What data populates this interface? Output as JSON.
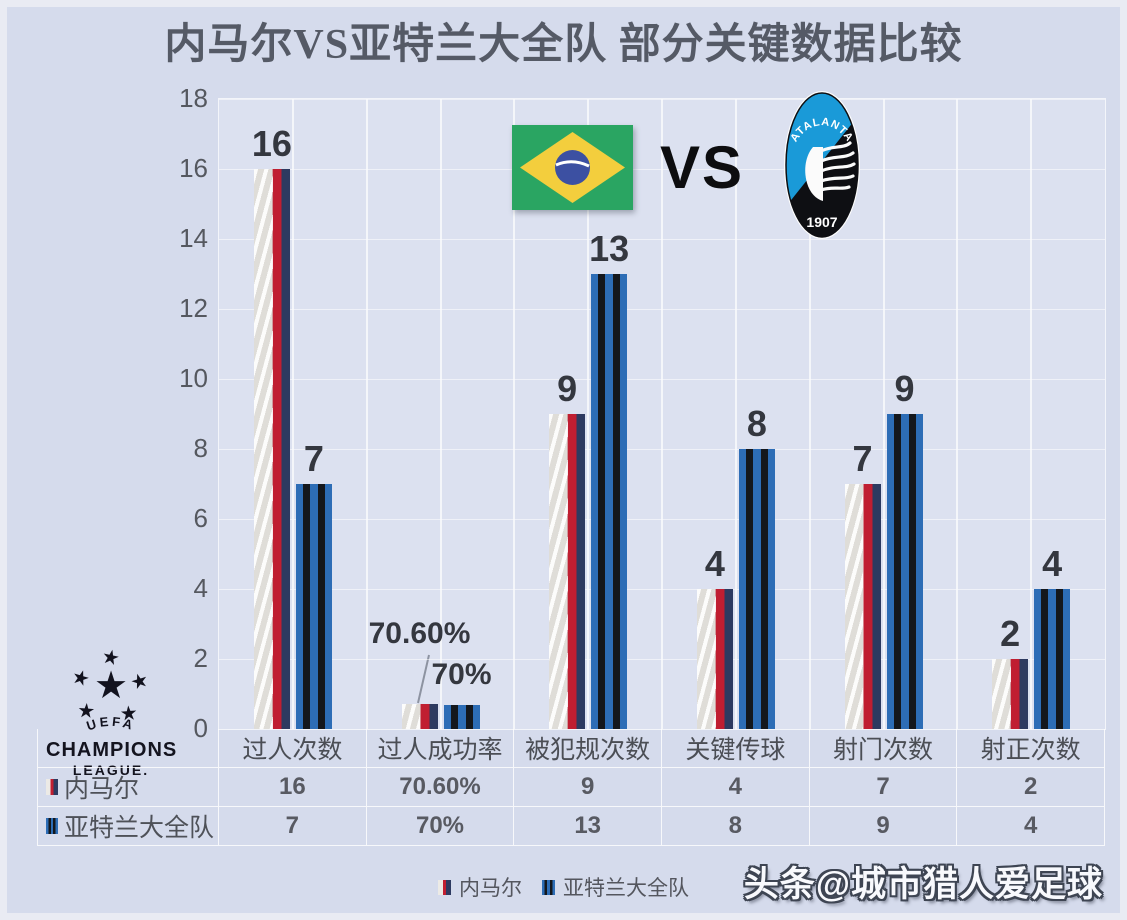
{
  "title": "内马尔VS亚特兰大全队 部分关键数据比较",
  "vs_label": "VS",
  "watermark": "头条@城市猎人爱足球",
  "colors": {
    "background": "#d5dbec",
    "plot_background": "#dce1f0",
    "neymar_white": "#eceae6",
    "neymar_red": "#c01e31",
    "neymar_navy": "#2d3a60",
    "atalanta_blue": "#2d6db6",
    "atalanta_black": "#14171c",
    "label_text": "#34373f",
    "axis_text": "#55585f",
    "crest_blue": "#1a9ad8",
    "flag_green": "#2aa562",
    "flag_yellow": "#f3ce3d",
    "flag_blue": "#3c50a2"
  },
  "logos": {
    "uefa": {
      "arc": "UEFA",
      "line1": "CHAMPIONS",
      "line2": "LEAGUE."
    },
    "atalanta": {
      "name": "ATALANTA",
      "year": "1907"
    }
  },
  "chart_data": {
    "type": "bar",
    "categories": [
      "过人次数",
      "过人成功率",
      "被犯规次数",
      "关键传球",
      "射门次数",
      "射正次数"
    ],
    "series": [
      {
        "name": "内马尔",
        "values": [
          16,
          0.706,
          9,
          4,
          7,
          2
        ],
        "labels": [
          "16",
          "70.60%",
          "9",
          "4",
          "7",
          "2"
        ]
      },
      {
        "name": "亚特兰大全队",
        "values": [
          7,
          0.7,
          13,
          8,
          9,
          4
        ],
        "labels": [
          "7",
          "70%",
          "13",
          "8",
          "9",
          "4"
        ]
      }
    ],
    "ylabel": "",
    "xlabel": "",
    "ylim": [
      0,
      18
    ],
    "yticks": [
      0,
      2,
      4,
      6,
      8,
      10,
      12,
      14,
      16,
      18
    ],
    "grid": true,
    "legend_position": "bottom",
    "label_lifts": [
      [
        6,
        55,
        6,
        6,
        6,
        6
      ],
      [
        6,
        14,
        6,
        6,
        6,
        6
      ]
    ]
  },
  "table": {
    "headers": [
      "过人次数",
      "过人成功率",
      "被犯规次数",
      "关键传球",
      "射门次数",
      "射正次数"
    ],
    "rows": [
      {
        "name": "内马尔",
        "cells": [
          "16",
          "70.60%",
          "9",
          "4",
          "7",
          "2"
        ]
      },
      {
        "name": "亚特兰大全队",
        "cells": [
          "7",
          "70%",
          "13",
          "8",
          "9",
          "4"
        ]
      }
    ]
  },
  "legend": {
    "items": [
      {
        "label": "内马尔"
      },
      {
        "label": "亚特兰大全队"
      }
    ]
  }
}
